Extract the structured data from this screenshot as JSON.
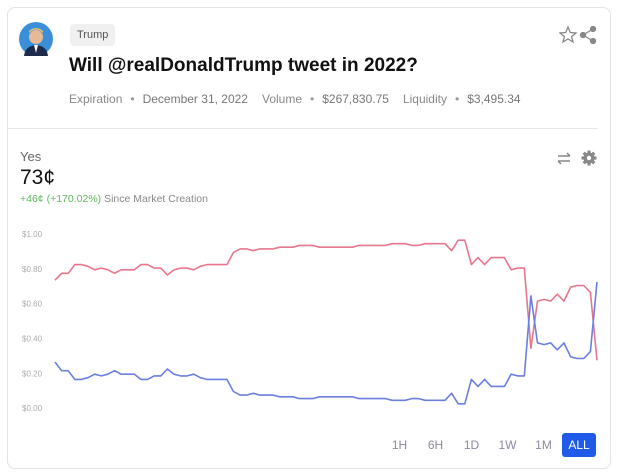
{
  "header": {
    "tag": "Trump",
    "title": "Will @realDonaldTrump tweet in 2022?",
    "stats": [
      {
        "label": "Expiration",
        "value": "December 31, 2022"
      },
      {
        "label": "Volume",
        "value": "$267,830.75"
      },
      {
        "label": "Liquidity",
        "value": "$3,495.34"
      }
    ]
  },
  "price": {
    "outcome": "Yes",
    "value": "73¢",
    "change": "+46¢",
    "change_pct": "(+170.02%)",
    "since": "Since Market Creation"
  },
  "chart_data": {
    "type": "line",
    "ylim": [
      0,
      1
    ],
    "yticks": [
      {
        "value": 0,
        "label": "$0.00"
      },
      {
        "value": 0.2,
        "label": "$0.20"
      },
      {
        "value": 0.4,
        "label": "$0.40"
      },
      {
        "value": 0.6,
        "label": "$0.60"
      },
      {
        "value": 0.8,
        "label": "$0.80"
      },
      {
        "value": 1,
        "label": "$1.00"
      }
    ],
    "grid": false,
    "series": [
      {
        "color": "#e8768c",
        "values": [
          0.74,
          0.78,
          0.78,
          0.83,
          0.83,
          0.82,
          0.8,
          0.81,
          0.8,
          0.78,
          0.8,
          0.8,
          0.8,
          0.83,
          0.83,
          0.81,
          0.81,
          0.77,
          0.8,
          0.81,
          0.81,
          0.8,
          0.82,
          0.83,
          0.83,
          0.83,
          0.83,
          0.9,
          0.92,
          0.92,
          0.91,
          0.92,
          0.92,
          0.92,
          0.93,
          0.93,
          0.93,
          0.94,
          0.94,
          0.94,
          0.93,
          0.93,
          0.93,
          0.93,
          0.93,
          0.93,
          0.94,
          0.94,
          0.94,
          0.94,
          0.94,
          0.95,
          0.95,
          0.95,
          0.94,
          0.94,
          0.95,
          0.95,
          0.95,
          0.95,
          0.91,
          0.97,
          0.97,
          0.83,
          0.87,
          0.83,
          0.87,
          0.87,
          0.87,
          0.8,
          0.81,
          0.81,
          0.35,
          0.62,
          0.63,
          0.62,
          0.66,
          0.62,
          0.7,
          0.71,
          0.71,
          0.67,
          0.28
        ]
      },
      {
        "color": "#6b7fe0",
        "values": [
          0.27,
          0.22,
          0.22,
          0.17,
          0.17,
          0.18,
          0.2,
          0.19,
          0.2,
          0.22,
          0.2,
          0.2,
          0.2,
          0.17,
          0.17,
          0.19,
          0.19,
          0.23,
          0.2,
          0.19,
          0.19,
          0.2,
          0.18,
          0.17,
          0.17,
          0.17,
          0.17,
          0.1,
          0.08,
          0.08,
          0.09,
          0.08,
          0.08,
          0.08,
          0.07,
          0.07,
          0.07,
          0.06,
          0.06,
          0.06,
          0.07,
          0.07,
          0.07,
          0.07,
          0.07,
          0.07,
          0.06,
          0.06,
          0.06,
          0.06,
          0.06,
          0.05,
          0.05,
          0.05,
          0.06,
          0.06,
          0.05,
          0.05,
          0.05,
          0.05,
          0.09,
          0.03,
          0.03,
          0.17,
          0.13,
          0.17,
          0.13,
          0.13,
          0.13,
          0.2,
          0.19,
          0.19,
          0.65,
          0.38,
          0.37,
          0.38,
          0.34,
          0.38,
          0.3,
          0.29,
          0.29,
          0.33,
          0.73
        ]
      }
    ]
  },
  "ranges": [
    "1H",
    "6H",
    "1D",
    "1W",
    "1M",
    "ALL"
  ],
  "active_range": 5
}
